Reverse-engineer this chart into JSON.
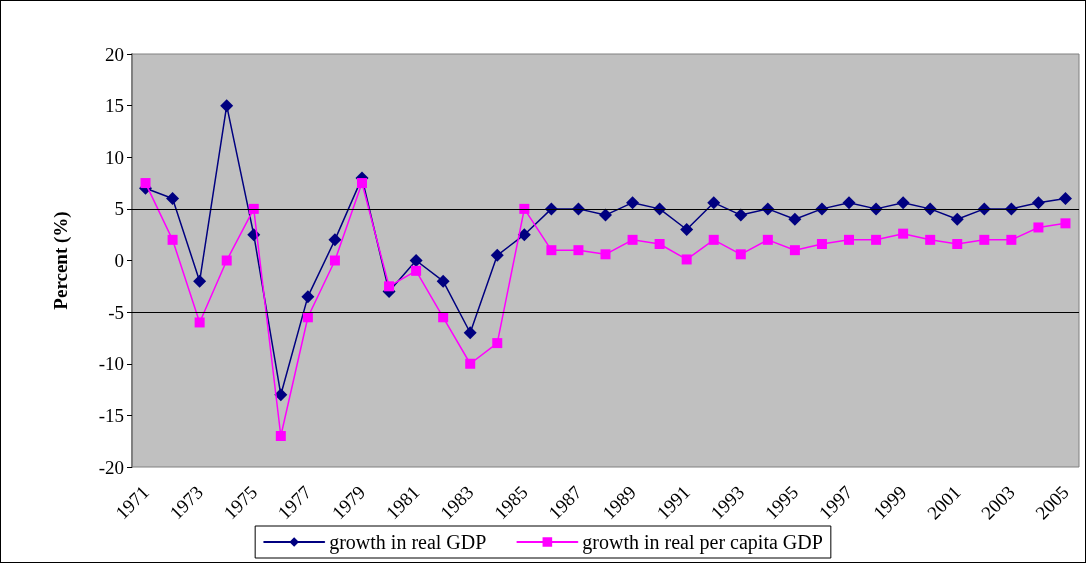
{
  "chart_data": {
    "type": "line",
    "ylabel": "Percent (%)",
    "categories": [
      "1971",
      null,
      "1973",
      null,
      "1975",
      null,
      "1977",
      null,
      "1979",
      null,
      "1981",
      null,
      "1983",
      null,
      "1985",
      null,
      "1987",
      null,
      "1989",
      null,
      "1991",
      null,
      "1993",
      null,
      "1995",
      null,
      "1997",
      null,
      "1999",
      null,
      "2001",
      null,
      "2003",
      null,
      "2005"
    ],
    "series": [
      {
        "name": "growth in real GDP",
        "color": "#000080",
        "marker": "diamond",
        "values": [
          7,
          6,
          -2,
          15,
          2.5,
          -13,
          -3.5,
          2,
          8,
          -3,
          0,
          -2,
          -7,
          0.5,
          2.5,
          5,
          5,
          4.4,
          5.6,
          5,
          3,
          5.6,
          4.4,
          5,
          4,
          5,
          5.6,
          5,
          5.6,
          5,
          4,
          5,
          5,
          5.6,
          6
        ]
      },
      {
        "name": "growth in real per capita GDP",
        "color": "#ff00ff",
        "marker": "square",
        "values": [
          7.5,
          2,
          -6,
          0,
          5,
          -17,
          -5.5,
          0,
          7.5,
          -2.5,
          -1,
          -5.5,
          -10,
          -8,
          5,
          1,
          1,
          0.6,
          2,
          1.6,
          0.1,
          2,
          0.6,
          2,
          1,
          1.6,
          2,
          2,
          2.6,
          2,
          1.6,
          2,
          2,
          3.2,
          3.6
        ]
      }
    ],
    "ylim": [
      -20,
      20
    ],
    "yticks": [
      -20,
      -15,
      -10,
      -5,
      0,
      5,
      10,
      15,
      20
    ],
    "ref_lines": [
      {
        "axis": "y",
        "value": 5,
        "color": "#000000"
      },
      {
        "axis": "y",
        "value": -5,
        "color": "#000000"
      }
    ],
    "legend": "bottom",
    "line_style": "solid"
  }
}
